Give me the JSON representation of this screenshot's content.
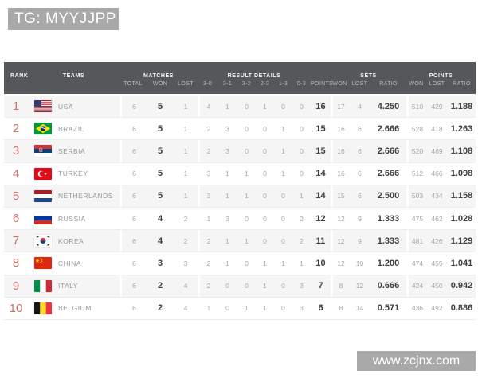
{
  "overlay": {
    "tg_label": "TG: MYYJJPP",
    "watermark": "www.zcjnx.com"
  },
  "colors": {
    "header_bg": "#55575b",
    "badge_bg": "#a9a9a9",
    "row_alt": "#f5f5f6",
    "rank_color": "#d0716d"
  },
  "table": {
    "headers": {
      "rank": "RANK",
      "teams": "TEAMS",
      "matches": "MATCHES",
      "result_details": "RESULT DETAILS",
      "sets": "SETS",
      "points_group": "POINTS",
      "total": "TOTAL",
      "won": "WON",
      "lost": "LOST",
      "s30": "3-0",
      "s31": "3-1",
      "s32": "3-2",
      "s23": "2-3",
      "s13": "1-3",
      "s03": "0-3",
      "points": "POINTS",
      "ratio": "RATIO"
    },
    "rows": [
      {
        "rank": "1",
        "team": "USA",
        "flag": "us",
        "total": "6",
        "won": "5",
        "lost": "1",
        "r30": "4",
        "r31": "1",
        "r32": "0",
        "r23": "1",
        "r13": "0",
        "r03": "0",
        "points": "16",
        "sets_won": "17",
        "sets_lost": "4",
        "sets_ratio": "4.250",
        "pts_won": "510",
        "pts_lost": "429",
        "pts_ratio": "1.188"
      },
      {
        "rank": "2",
        "team": "BRAZIL",
        "flag": "br",
        "total": "6",
        "won": "5",
        "lost": "1",
        "r30": "2",
        "r31": "3",
        "r32": "0",
        "r23": "0",
        "r13": "1",
        "r03": "0",
        "points": "15",
        "sets_won": "16",
        "sets_lost": "6",
        "sets_ratio": "2.666",
        "pts_won": "528",
        "pts_lost": "418",
        "pts_ratio": "1.263"
      },
      {
        "rank": "3",
        "team": "SERBIA",
        "flag": "rs",
        "total": "6",
        "won": "5",
        "lost": "1",
        "r30": "2",
        "r31": "3",
        "r32": "0",
        "r23": "0",
        "r13": "1",
        "r03": "0",
        "points": "15",
        "sets_won": "16",
        "sets_lost": "6",
        "sets_ratio": "2.666",
        "pts_won": "520",
        "pts_lost": "469",
        "pts_ratio": "1.108"
      },
      {
        "rank": "4",
        "team": "TURKEY",
        "flag": "tr",
        "total": "6",
        "won": "5",
        "lost": "1",
        "r30": "3",
        "r31": "1",
        "r32": "1",
        "r23": "0",
        "r13": "1",
        "r03": "0",
        "points": "14",
        "sets_won": "16",
        "sets_lost": "6",
        "sets_ratio": "2.666",
        "pts_won": "512",
        "pts_lost": "466",
        "pts_ratio": "1.098"
      },
      {
        "rank": "5",
        "team": "NETHERLANDS",
        "flag": "nl",
        "total": "6",
        "won": "5",
        "lost": "1",
        "r30": "3",
        "r31": "1",
        "r32": "1",
        "r23": "0",
        "r13": "0",
        "r03": "1",
        "points": "14",
        "sets_won": "15",
        "sets_lost": "6",
        "sets_ratio": "2.500",
        "pts_won": "503",
        "pts_lost": "434",
        "pts_ratio": "1.158"
      },
      {
        "rank": "6",
        "team": "RUSSIA",
        "flag": "ru",
        "total": "6",
        "won": "4",
        "lost": "2",
        "r30": "1",
        "r31": "3",
        "r32": "0",
        "r23": "0",
        "r13": "0",
        "r03": "2",
        "points": "12",
        "sets_won": "12",
        "sets_lost": "9",
        "sets_ratio": "1.333",
        "pts_won": "475",
        "pts_lost": "462",
        "pts_ratio": "1.028"
      },
      {
        "rank": "7",
        "team": "KOREA",
        "flag": "kr",
        "total": "6",
        "won": "4",
        "lost": "2",
        "r30": "2",
        "r31": "1",
        "r32": "1",
        "r23": "0",
        "r13": "0",
        "r03": "2",
        "points": "11",
        "sets_won": "12",
        "sets_lost": "9",
        "sets_ratio": "1.333",
        "pts_won": "481",
        "pts_lost": "426",
        "pts_ratio": "1.129"
      },
      {
        "rank": "8",
        "team": "CHINA",
        "flag": "cn",
        "total": "6",
        "won": "3",
        "lost": "3",
        "r30": "2",
        "r31": "1",
        "r32": "0",
        "r23": "1",
        "r13": "1",
        "r03": "1",
        "points": "10",
        "sets_won": "12",
        "sets_lost": "10",
        "sets_ratio": "1.200",
        "pts_won": "474",
        "pts_lost": "455",
        "pts_ratio": "1.041"
      },
      {
        "rank": "9",
        "team": "ITALY",
        "flag": "it",
        "total": "6",
        "won": "2",
        "lost": "4",
        "r30": "2",
        "r31": "0",
        "r32": "0",
        "r23": "1",
        "r13": "0",
        "r03": "3",
        "points": "7",
        "sets_won": "8",
        "sets_lost": "12",
        "sets_ratio": "0.666",
        "pts_won": "424",
        "pts_lost": "450",
        "pts_ratio": "0.942"
      },
      {
        "rank": "10",
        "team": "BELGIUM",
        "flag": "be",
        "total": "6",
        "won": "2",
        "lost": "4",
        "r30": "1",
        "r31": "0",
        "r32": "1",
        "r23": "1",
        "r13": "0",
        "r03": "3",
        "points": "6",
        "sets_won": "8",
        "sets_lost": "14",
        "sets_ratio": "0.571",
        "pts_won": "436",
        "pts_lost": "492",
        "pts_ratio": "0.886"
      }
    ]
  }
}
